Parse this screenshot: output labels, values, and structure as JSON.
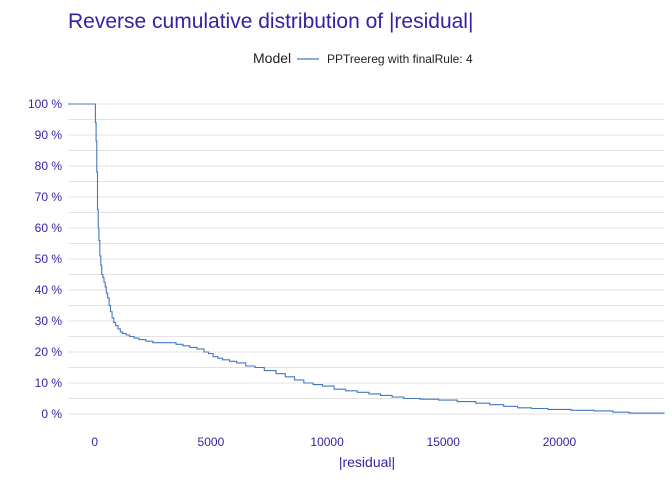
{
  "chart_data": {
    "type": "line",
    "title": "Reverse cumulative distribution of |residual|",
    "xlabel": "|residual|",
    "ylabel": "",
    "legend": {
      "title": "Model",
      "position": "top"
    },
    "xlim": [
      -1150,
      24500
    ],
    "ylim": [
      -4.5,
      104.5
    ],
    "x_ticks": [
      0,
      5000,
      10000,
      15000,
      20000
    ],
    "x_tick_labels": [
      "0",
      "5000",
      "10000",
      "15000",
      "20000"
    ],
    "y_ticks": [
      0,
      10,
      20,
      30,
      40,
      50,
      60,
      70,
      80,
      90,
      100
    ],
    "y_tick_labels": [
      "0 %",
      "10 %",
      "20 %",
      "30 %",
      "40 %",
      "50 %",
      "60 %",
      "70 %",
      "80 %",
      "90 %",
      "100 %"
    ],
    "grid": true,
    "series": [
      {
        "name": "PPTreereg with finalRule:  4",
        "color": "#4378bf",
        "x": [
          -1150,
          0,
          30,
          60,
          90,
          120,
          150,
          180,
          220,
          260,
          300,
          350,
          400,
          450,
          500,
          560,
          620,
          680,
          750,
          820,
          900,
          1000,
          1100,
          1200,
          1350,
          1500,
          1700,
          1900,
          2200,
          2500,
          2800,
          3100,
          3500,
          3800,
          4100,
          4400,
          4700,
          4900,
          5100,
          5300,
          5500,
          5800,
          6100,
          6500,
          6900,
          7300,
          7800,
          8200,
          8600,
          9000,
          9400,
          9800,
          10300,
          10800,
          11300,
          11800,
          12300,
          12800,
          13300,
          14000,
          14800,
          15600,
          16400,
          17000,
          17600,
          18200,
          18800,
          19500,
          20500,
          21500,
          22300,
          23000,
          24500
        ],
        "y": [
          100,
          100,
          94,
          88,
          78,
          66,
          60,
          56,
          51,
          48,
          45,
          44,
          42.5,
          41,
          39,
          37.5,
          35,
          33,
          31,
          29.5,
          28.5,
          27.5,
          26.5,
          26,
          25.5,
          25,
          24.5,
          24,
          23.5,
          23,
          23,
          23,
          22.5,
          22,
          21.5,
          21,
          20,
          19.5,
          18.5,
          18,
          17.5,
          17,
          16.5,
          15.5,
          15,
          14,
          13,
          12,
          11,
          10,
          9.5,
          9,
          8,
          7.5,
          7,
          6.5,
          6,
          5.5,
          5,
          4.8,
          4.5,
          4,
          3.5,
          3,
          2.5,
          2,
          1.8,
          1.5,
          1.2,
          1,
          0.6,
          0.3,
          0.1
        ]
      }
    ]
  }
}
